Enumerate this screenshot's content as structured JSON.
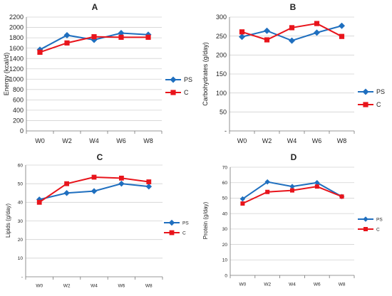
{
  "chart_data": [
    {
      "panel": "A",
      "type": "line",
      "ylabel": "Energy (kcal/d)",
      "categories": [
        "W0",
        "W2",
        "W4",
        "W6",
        "W8"
      ],
      "ylim": [
        0,
        2200
      ],
      "yticks": [
        "0",
        "200",
        "400",
        "600",
        "800",
        "1000",
        "1200",
        "1400",
        "1600",
        "1800",
        "2000",
        "2200"
      ],
      "series": [
        {
          "name": "PS",
          "color": "#1f6fbf",
          "marker": "diamond",
          "values": [
            1570,
            1850,
            1760,
            1890,
            1860
          ]
        },
        {
          "name": "C",
          "color": "#e8141b",
          "marker": "square",
          "values": [
            1520,
            1700,
            1820,
            1810,
            1810
          ]
        }
      ]
    },
    {
      "panel": "B",
      "type": "line",
      "ylabel": "Carbohydrates (g/day)",
      "categories": [
        "W0",
        "W2",
        "W4",
        "W6",
        "W8"
      ],
      "ylim": [
        0,
        300
      ],
      "yticks": [
        "-",
        "50",
        "100",
        "150",
        "200",
        "250",
        "300"
      ],
      "series": [
        {
          "name": "PS",
          "color": "#1f6fbf",
          "marker": "diamond",
          "values": [
            248,
            264,
            238,
            259,
            277
          ]
        },
        {
          "name": "C",
          "color": "#e8141b",
          "marker": "square",
          "values": [
            261,
            240,
            272,
            283,
            249
          ]
        }
      ]
    },
    {
      "panel": "C",
      "type": "line",
      "ylabel": "Lipids (g/day)",
      "categories": [
        "W0",
        "W2",
        "W4",
        "W6",
        "W8"
      ],
      "ylim": [
        0,
        60
      ],
      "yticks": [
        "-",
        "10",
        "20",
        "30",
        "40",
        "50",
        "60"
      ],
      "series": [
        {
          "name": "PS",
          "color": "#1f6fbf",
          "marker": "diamond",
          "values": [
            41.5,
            45,
            46,
            50,
            48.5
          ]
        },
        {
          "name": "C",
          "color": "#e8141b",
          "marker": "square",
          "values": [
            40,
            50,
            53.5,
            53,
            51
          ]
        }
      ]
    },
    {
      "panel": "D",
      "type": "line",
      "ylabel": "Protein (g/day)",
      "categories": [
        "W0",
        "W2",
        "W4",
        "W6",
        "W8"
      ],
      "ylim": [
        0,
        70
      ],
      "yticks": [
        "0",
        "10",
        "20",
        "30",
        "40",
        "50",
        "60",
        "70"
      ],
      "series": [
        {
          "name": "PS",
          "color": "#1f6fbf",
          "marker": "diamond",
          "values": [
            49.5,
            60.5,
            57.5,
            60,
            51
          ]
        },
        {
          "name": "C",
          "color": "#e8141b",
          "marker": "square",
          "values": [
            46.5,
            54,
            55,
            57.5,
            51
          ]
        }
      ]
    }
  ]
}
